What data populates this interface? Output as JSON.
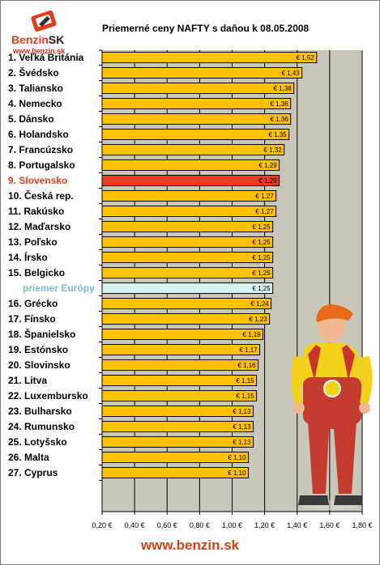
{
  "title": "Priemerné ceny NAFTY s daňou k 08.05.2008",
  "logo": {
    "brand": "Benzin",
    "brand_suffix": "SK",
    "url": "www.benzin.sk"
  },
  "footer": "www.benzin.sk",
  "colors": {
    "bar": "#FFC000",
    "highlight_bar": "#E2401E",
    "europe_bar": "#D8F4F0",
    "plot_bg": "#C9C7B9",
    "highlight_text": "#E0401B",
    "europe_text": "#7FB9D6"
  },
  "chart_data": {
    "type": "bar",
    "orientation": "horizontal",
    "title": "Priemerné ceny NAFTY s daňou k 08.05.2008",
    "categories": [
      "1. Veľká Británia",
      "2. Švédsko",
      "3. Taliansko",
      "4. Nemecko",
      "5. Dánsko",
      "6. Holandsko",
      "7. Francúzsko",
      "8. Portugalsko",
      "9. Slovensko",
      "10. Česká rep.",
      "11. Rakúsko",
      "12. Maďarsko",
      "13. Poľsko",
      "14. Írsko",
      "15. Belgicko",
      "priemer Európy",
      "16. Grécko",
      "17. Fínsko",
      "18. Španielsko",
      "19. Estónsko",
      "20. Slovinsko",
      "21. Litva",
      "22. Luxembursko",
      "23. Bulharsko",
      "24. Rumunsko",
      "25. Lotyšsko",
      "26. Malta",
      "27. Cyprus"
    ],
    "values": [
      1.52,
      1.43,
      1.38,
      1.36,
      1.36,
      1.35,
      1.32,
      1.29,
      1.29,
      1.27,
      1.27,
      1.25,
      1.25,
      1.25,
      1.25,
      1.25,
      1.24,
      1.23,
      1.19,
      1.17,
      1.16,
      1.15,
      1.15,
      1.13,
      1.13,
      1.13,
      1.1,
      1.1
    ],
    "value_labels": [
      "€ 1,52",
      "€ 1,43",
      "€ 1,38",
      "€ 1,36",
      "€ 1,36",
      "€ 1,35",
      "€ 1,32",
      "€ 1,29",
      "€ 1,29",
      "€ 1,27",
      "€ 1,27",
      "€ 1,25",
      "€ 1,25",
      "€ 1,25",
      "€ 1,25",
      "€ 1,25",
      "€ 1,24",
      "€ 1,23",
      "€ 1,19",
      "€ 1,17",
      "€ 1,16",
      "€ 1,15",
      "€ 1,15",
      "€ 1,13",
      "€ 1,13",
      "€ 1,13",
      "€ 1,10",
      "€ 1,10"
    ],
    "highlight_index": 8,
    "europe_index": 15,
    "xlim": [
      0.2,
      1.8
    ],
    "x_ticks": [
      0.2,
      0.4,
      0.6,
      0.8,
      1.0,
      1.2,
      1.4,
      1.6,
      1.8
    ],
    "x_tick_labels": [
      "0,20 €",
      "0,40 €",
      "0,60 €",
      "0,80 €",
      "1,00 €",
      "1,20 €",
      "1,40 €",
      "1,60 €",
      "1,80 €"
    ],
    "grid": true,
    "grid_axis": "x"
  }
}
